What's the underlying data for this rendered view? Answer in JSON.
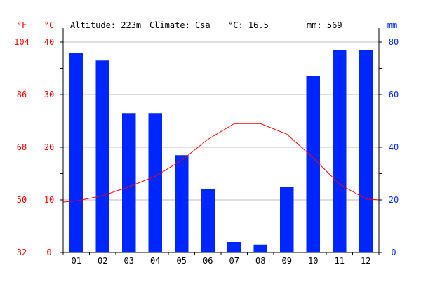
{
  "chart_data": {
    "type": "bar",
    "title": "",
    "header": {
      "altitude": "Altitude: 223m",
      "climate": "Climate: Csa",
      "temp": "°C: 16.5",
      "precip": "mm: 569"
    },
    "axis_units": {
      "fahrenheit": "°F",
      "celsius": "°C",
      "mm": "mm"
    },
    "categories": [
      "01",
      "02",
      "03",
      "04",
      "05",
      "06",
      "07",
      "08",
      "09",
      "10",
      "11",
      "12"
    ],
    "series": [
      {
        "name": "",
        "kind": "bar",
        "axis": "right",
        "color": "#0026ff",
        "values": [
          76,
          73,
          53,
          53,
          37,
          24,
          4,
          3,
          25,
          67,
          77,
          77
        ]
      },
      {
        "name": "",
        "kind": "line",
        "axis": "left",
        "color": "#ff0000",
        "values": [
          9.8,
          10.8,
          12.5,
          14.5,
          17.5,
          21.5,
          24.5,
          24.5,
          22.5,
          18,
          13,
          10.2
        ]
      }
    ],
    "left_axis": {
      "celsius_ticks": [
        0,
        10,
        20,
        30,
        40
      ],
      "fahrenheit_ticks": [
        32,
        50,
        68,
        86,
        104
      ],
      "ylim": [
        0,
        40
      ]
    },
    "right_axis": {
      "ticks": [
        0,
        20,
        40,
        60,
        80
      ],
      "ylim": [
        0,
        80
      ]
    },
    "grid": true,
    "legend": "none",
    "colors": {
      "temperature": "#ff0000",
      "precipitation": "#0026ff",
      "grid": "#bbbbbb"
    }
  }
}
